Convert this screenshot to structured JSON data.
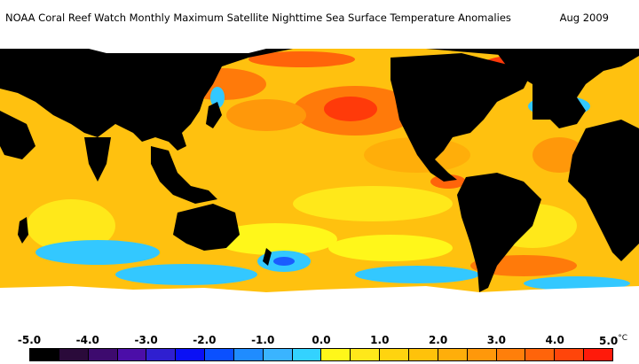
{
  "header": {
    "title": "NOAA Coral Reef Watch Monthly Maximum Satellite Nighttime Sea Surface Temperature Anomalies",
    "date": "Aug 2009"
  },
  "legend": {
    "tick_labels": [
      "-5.0",
      "-4.0",
      "-3.0",
      "-2.0",
      "-1.0",
      "0.0",
      "1.0",
      "2.0",
      "3.0",
      "4.0",
      "5.0"
    ],
    "unit": "°C",
    "colors": [
      "#000000",
      "#2a0a3a",
      "#3d0a6e",
      "#4b0ea8",
      "#2f1fd0",
      "#0a10f5",
      "#0a50ff",
      "#1f8cff",
      "#3ab4ff",
      "#33d2ff",
      "#fff71a",
      "#ffe81a",
      "#ffd40f",
      "#ffc20a",
      "#ffae0a",
      "#ff980a",
      "#ff7f0a",
      "#ff640a",
      "#ff450a",
      "#ff1a0a"
    ]
  },
  "map_colors": {
    "land": "#000000",
    "ice": "#ffffff",
    "ocean_base": "#ffc10f",
    "warm": "#ff7a0a",
    "hot": "#ff3a0a",
    "mild": "#ffe81a",
    "cool": "#33c8ff",
    "cold": "#1a5cff"
  }
}
